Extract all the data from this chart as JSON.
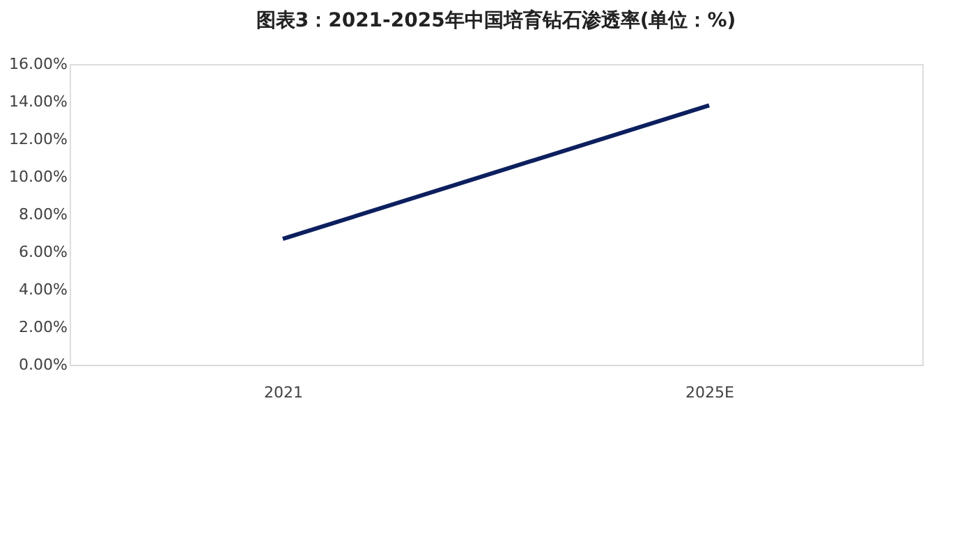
{
  "chart_data": {
    "type": "line",
    "title": "图表3：2021-2025年中国培育钻石渗透率(单位：%)",
    "categories": [
      "2021",
      "2025E"
    ],
    "series": [
      {
        "color": "#0c1f5e",
        "values": [
          6.7,
          13.8
        ]
      }
    ],
    "ylim": [
      0,
      16
    ],
    "yticks": [
      {
        "value": 0,
        "label": "0.00%"
      },
      {
        "value": 2,
        "label": "2.00%"
      },
      {
        "value": 4,
        "label": "4.00%"
      },
      {
        "value": 6,
        "label": "6.00%"
      },
      {
        "value": 8,
        "label": "8.00%"
      },
      {
        "value": 10,
        "label": "10.00%"
      },
      {
        "value": 12,
        "label": "12.00%"
      },
      {
        "value": 14,
        "label": "14.00%"
      },
      {
        "value": 16,
        "label": "16.00%"
      }
    ],
    "grid": false,
    "legend": false,
    "marker": "none",
    "line_style": "solid"
  }
}
